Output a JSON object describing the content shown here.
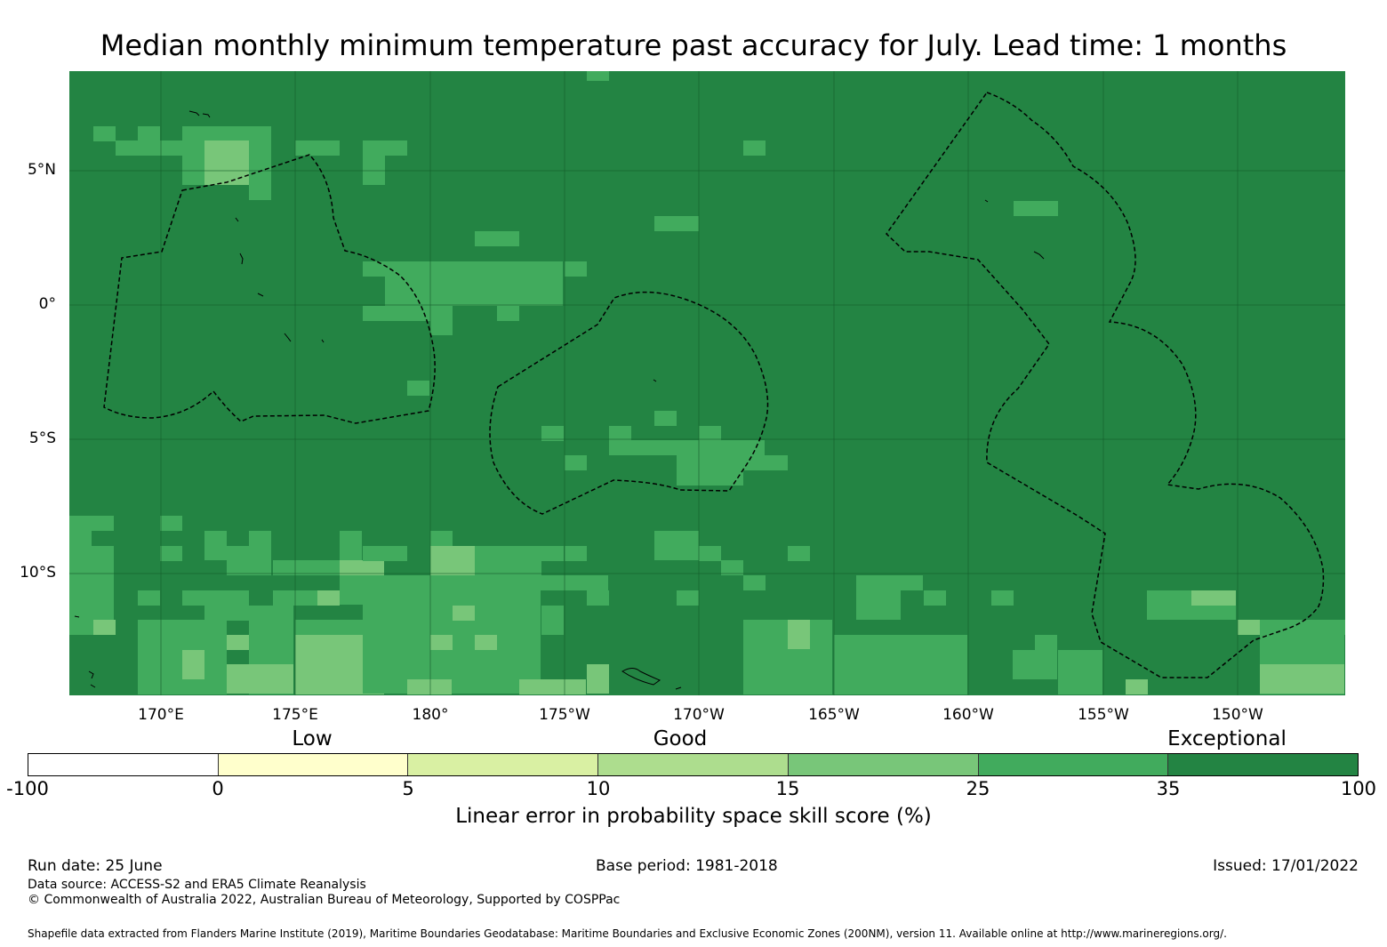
{
  "title": "Median monthly minimum temperature past accuracy for July. Lead time: 1 months",
  "map": {
    "lat_labels": [
      "5°N",
      "0°",
      "5°S",
      "10°S"
    ],
    "lon_labels": [
      "170°E",
      "175°E",
      "180°",
      "175°W",
      "170°W",
      "165°W",
      "160°W",
      "155°W",
      "150°W"
    ],
    "background_color": "#238443",
    "mid_color": "#41ab5d",
    "light_color": "#78c679",
    "coastline_color": "#000000"
  },
  "legend": {
    "categories": [
      "Low",
      "Good",
      "Exceptional"
    ],
    "ticks": [
      "-100",
      "0",
      "5",
      "10",
      "15",
      "25",
      "35",
      "100"
    ],
    "colors": [
      "#ffffff",
      "#ffffcc",
      "#d9f0a3",
      "#addd8e",
      "#78c679",
      "#41ab5d",
      "#238443"
    ],
    "title": "Linear error in probability space skill score (%)"
  },
  "footer": {
    "run_date": "Run date: 25 June",
    "base_period": "Base period: 1981-2018",
    "issued": "Issued: 17/01/2022",
    "data_source": "Data source: ACCESS-S2 and ERA5 Climate Reanalysis",
    "copyright": "© Commonwealth of Australia 2022, Australian Bureau of Meteorology, Supported by COSPPac",
    "shapefile": "Shapefile data extracted from Flanders Marine Institute (2019), Maritime Boundaries Geodatabase: Maritime Boundaries and Exclusive Economic Zones (200NM), version 11. Available online at http://www.marineregions.org/."
  }
}
